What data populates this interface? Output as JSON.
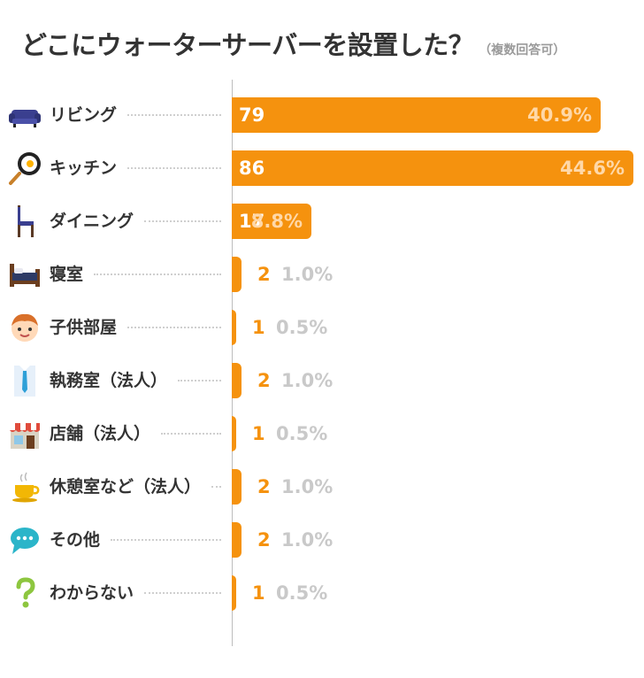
{
  "title": "どこにウォーターサーバーを設置した？",
  "title_note": "（複数回答可）",
  "chart_data": {
    "type": "bar",
    "orientation": "horizontal",
    "title": "どこにウォーターサーバーを設置した？（複数回答可）",
    "bar_color": "#f5920e",
    "xlim": [
      0,
      86
    ],
    "categories": [
      "リビング",
      "キッチン",
      "ダイニング",
      "寝室",
      "子供部屋",
      "執務室（法人）",
      "店舗（法人）",
      "休憩室など（法人）",
      "その他",
      "わからない"
    ],
    "values": [
      79,
      86,
      17,
      2,
      1,
      2,
      1,
      2,
      2,
      1
    ],
    "value_labels": [
      "79",
      "86",
      "17",
      "2",
      "1",
      "2",
      "1",
      "2",
      "2",
      "1"
    ],
    "percent_labels": [
      "40.9%",
      "44.6%",
      "8.8%",
      "1.0%",
      "0.5%",
      "1.0%",
      "0.5%",
      "1.0%",
      "1.0%",
      "0.5%"
    ],
    "icons": [
      "sofa-icon",
      "frying-pan-icon",
      "chair-icon",
      "bed-icon",
      "child-face-icon",
      "shirt-tie-icon",
      "storefront-icon",
      "coffee-cup-icon",
      "speech-bubble-icon",
      "question-mark-icon"
    ]
  }
}
